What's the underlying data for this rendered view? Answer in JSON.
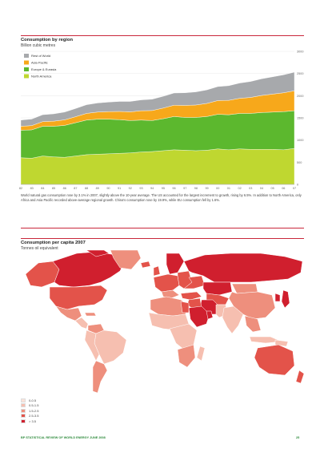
{
  "chart_data": [
    {
      "type": "area",
      "title": "Consumption by region",
      "subtitle": "Billion cubic metres",
      "x": [
        "82",
        "83",
        "84",
        "85",
        "86",
        "87",
        "88",
        "89",
        "90",
        "91",
        "92",
        "93",
        "94",
        "95",
        "96",
        "97",
        "98",
        "99",
        "00",
        "01",
        "02",
        "03",
        "04",
        "05",
        "06",
        "07"
      ],
      "series": [
        {
          "name": "North America",
          "color": "#bfd730",
          "values": [
            600,
            590,
            640,
            620,
            610,
            640,
            670,
            680,
            690,
            700,
            710,
            730,
            740,
            760,
            780,
            770,
            760,
            770,
            800,
            780,
            800,
            790,
            790,
            790,
            780,
            810
          ]
        },
        {
          "name": "Europe & Eurasia",
          "color": "#5cb82e",
          "values": [
            620,
            640,
            670,
            690,
            720,
            750,
            780,
            790,
            780,
            760,
            730,
            720,
            700,
            720,
            750,
            740,
            750,
            760,
            780,
            790,
            800,
            810,
            830,
            840,
            860,
            850
          ]
        },
        {
          "name": "Asia Pacific",
          "color": "#f7a81b",
          "values": [
            90,
            95,
            105,
            115,
            125,
            135,
            150,
            160,
            170,
            185,
            195,
            210,
            225,
            240,
            255,
            270,
            280,
            295,
            310,
            325,
            340,
            360,
            385,
            405,
            425,
            450
          ]
        },
        {
          "name": "Rest of World",
          "color": "#a7a9ac",
          "values": [
            140,
            148,
            156,
            165,
            175,
            185,
            195,
            205,
            215,
            225,
            235,
            245,
            255,
            265,
            275,
            285,
            295,
            305,
            315,
            330,
            345,
            360,
            375,
            390,
            405,
            420
          ]
        }
      ],
      "y_ticks": [
        "0",
        "500",
        "1000",
        "1500",
        "2000",
        "2500",
        "3000"
      ],
      "ylim": [
        0,
        3000
      ],
      "legend": "top-left"
    },
    {
      "type": "choropleth",
      "title": "Consumption per capita 2007",
      "subtitle": "Tonnes oil equivalent",
      "legend": "bottom-left",
      "classes": [
        {
          "label": "0-0.5",
          "color": "#fbe3d9"
        },
        {
          "label": "0.5-1.5",
          "color": "#f6bfb0"
        },
        {
          "label": "1.5-2.5",
          "color": "#ee8f7d"
        },
        {
          "label": "2.5-3.5",
          "color": "#e3534a"
        },
        {
          "label": "> 3.5",
          "color": "#d01f2e"
        }
      ]
    }
  ],
  "caption": "World natural gas consumption rose by 3.1% in 2007, slightly above the 10-year average. The US accounted for the largest increment to growth, rising by 6.5%. In addition to North America, only Africa and Asia Pacific recorded above-average regional growth. China's consumption rose by 19.9%, while EU consumption fell by 1.6%.",
  "footer": {
    "left": "BP STATISTICAL REVIEW OF WORLD ENERGY JUNE 2008",
    "right": "25"
  }
}
